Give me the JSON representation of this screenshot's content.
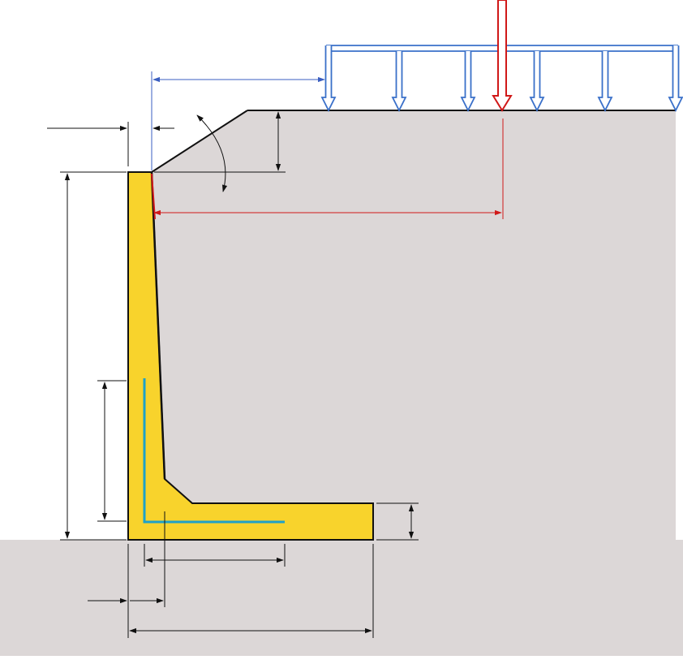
{
  "diagram": {
    "kind": "cantilever-retaining-wall-cross-section",
    "colors": {
      "soil": "#dcd7d7",
      "wall": "#f8d32c",
      "wall_outline": "#111111",
      "reinforcement": "#1ea1c9",
      "distributed_load": "#3a70c9",
      "point_load": "#d01818",
      "load_offset_dimension": "#d01818",
      "load_setback_dimension": "#3a5ec0",
      "dimension_lines": "#111111"
    },
    "elements": [
      "backfill-soil",
      "foundation-soil",
      "retaining-wall-stem",
      "retaining-wall-heel",
      "haunch",
      "slope-crest",
      "stem-reinforcement",
      "heel-reinforcement",
      "distributed-surcharge-load",
      "point-load",
      "dimension-lines"
    ],
    "distributed_load_arrow_count": 6,
    "point_load_count": 1,
    "labels": {}
  }
}
